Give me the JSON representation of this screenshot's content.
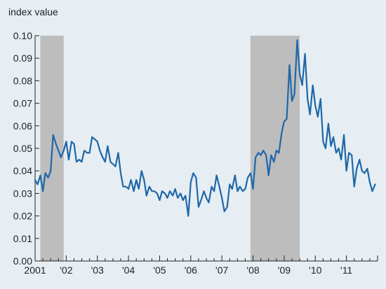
{
  "chart_data": {
    "type": "line",
    "ylabel": "index value",
    "ylim": [
      0,
      0.1
    ],
    "xlim": [
      2001.0,
      2012.0
    ],
    "y_ticks": [
      {
        "value": 0.0,
        "label": "0.00"
      },
      {
        "value": 0.01,
        "label": "0.01"
      },
      {
        "value": 0.02,
        "label": "0.02"
      },
      {
        "value": 0.03,
        "label": "0.03"
      },
      {
        "value": 0.04,
        "label": "0.04"
      },
      {
        "value": 0.05,
        "label": "0.05"
      },
      {
        "value": 0.06,
        "label": "0.06"
      },
      {
        "value": 0.07,
        "label": "0.07"
      },
      {
        "value": 0.08,
        "label": "0.08"
      },
      {
        "value": 0.09,
        "label": "0.09"
      },
      {
        "value": 0.1,
        "label": "0.10"
      }
    ],
    "x_ticks": [
      {
        "value": 2001,
        "label": "2001"
      },
      {
        "value": 2002,
        "label": "'02"
      },
      {
        "value": 2003,
        "label": "'03"
      },
      {
        "value": 2004,
        "label": "'04"
      },
      {
        "value": 2005,
        "label": "'05"
      },
      {
        "value": 2006,
        "label": "'06"
      },
      {
        "value": 2007,
        "label": "'07"
      },
      {
        "value": 2008,
        "label": "'08"
      },
      {
        "value": 2009,
        "label": "'09"
      },
      {
        "value": 2010,
        "label": "'10"
      },
      {
        "value": 2011,
        "label": "'11"
      }
    ],
    "shaded_periods": [
      {
        "start": 2001.167,
        "end": 2001.917
      },
      {
        "start": 2007.917,
        "end": 2009.5
      }
    ],
    "colors": {
      "line": "#1f67a8",
      "shade": "#bdbdbd",
      "background": "#e6eef3",
      "axis": "#222222"
    },
    "series": [
      {
        "x": [
          2001.0,
          2001.08,
          2001.17,
          2001.25,
          2001.33,
          2001.42,
          2001.5,
          2001.58,
          2001.67,
          2001.75,
          2001.83,
          2001.92,
          2002.0,
          2002.08,
          2002.17,
          2002.25,
          2002.33,
          2002.42,
          2002.5,
          2002.58,
          2002.67,
          2002.75,
          2002.83,
          2002.92,
          2003.0,
          2003.08,
          2003.17,
          2003.25,
          2003.33,
          2003.42,
          2003.5,
          2003.58,
          2003.67,
          2003.75,
          2003.83,
          2003.92,
          2004.0,
          2004.08,
          2004.17,
          2004.25,
          2004.33,
          2004.42,
          2004.5,
          2004.58,
          2004.67,
          2004.75,
          2004.83,
          2004.92,
          2005.0,
          2005.08,
          2005.17,
          2005.25,
          2005.33,
          2005.42,
          2005.5,
          2005.58,
          2005.67,
          2005.75,
          2005.83,
          2005.92,
          2006.0,
          2006.08,
          2006.17,
          2006.25,
          2006.33,
          2006.42,
          2006.5,
          2006.58,
          2006.67,
          2006.75,
          2006.83,
          2006.92,
          2007.0,
          2007.08,
          2007.17,
          2007.25,
          2007.33,
          2007.42,
          2007.5,
          2007.58,
          2007.67,
          2007.75,
          2007.83,
          2007.92,
          2008.0,
          2008.08,
          2008.17,
          2008.25,
          2008.33,
          2008.42,
          2008.5,
          2008.58,
          2008.67,
          2008.75,
          2008.83,
          2008.92,
          2009.0,
          2009.08,
          2009.17,
          2009.25,
          2009.33,
          2009.42,
          2009.5,
          2009.58,
          2009.67,
          2009.75,
          2009.83,
          2009.92,
          2010.0,
          2010.08,
          2010.17,
          2010.25,
          2010.33,
          2010.42,
          2010.5,
          2010.58,
          2010.67,
          2010.75,
          2010.83,
          2010.92,
          2011.0,
          2011.08,
          2011.17,
          2011.25,
          2011.33,
          2011.42,
          2011.5,
          2011.58,
          2011.67,
          2011.75,
          2011.83,
          2011.92
        ],
        "values": [
          0.036,
          0.034,
          0.038,
          0.031,
          0.039,
          0.037,
          0.04,
          0.056,
          0.052,
          0.049,
          0.046,
          0.049,
          0.053,
          0.045,
          0.053,
          0.052,
          0.044,
          0.045,
          0.044,
          0.049,
          0.048,
          0.048,
          0.055,
          0.054,
          0.053,
          0.049,
          0.046,
          0.044,
          0.051,
          0.044,
          0.043,
          0.042,
          0.048,
          0.039,
          0.033,
          0.033,
          0.032,
          0.036,
          0.031,
          0.036,
          0.032,
          0.04,
          0.036,
          0.029,
          0.033,
          0.031,
          0.031,
          0.03,
          0.027,
          0.031,
          0.03,
          0.028,
          0.031,
          0.029,
          0.032,
          0.028,
          0.03,
          0.027,
          0.029,
          0.02,
          0.035,
          0.039,
          0.037,
          0.024,
          0.027,
          0.031,
          0.028,
          0.026,
          0.033,
          0.031,
          0.038,
          0.033,
          0.028,
          0.022,
          0.024,
          0.034,
          0.032,
          0.038,
          0.031,
          0.033,
          0.031,
          0.032,
          0.037,
          0.039,
          0.032,
          0.046,
          0.048,
          0.047,
          0.049,
          0.047,
          0.038,
          0.047,
          0.044,
          0.049,
          0.048,
          0.057,
          0.062,
          0.063,
          0.087,
          0.071,
          0.074,
          0.098,
          0.083,
          0.078,
          0.092,
          0.072,
          0.065,
          0.078,
          0.069,
          0.064,
          0.072,
          0.053,
          0.05,
          0.061,
          0.051,
          0.055,
          0.048,
          0.05,
          0.045,
          0.056,
          0.04,
          0.048,
          0.047,
          0.033,
          0.041,
          0.045,
          0.04,
          0.039,
          0.041,
          0.035,
          0.031,
          0.034
        ]
      }
    ]
  }
}
